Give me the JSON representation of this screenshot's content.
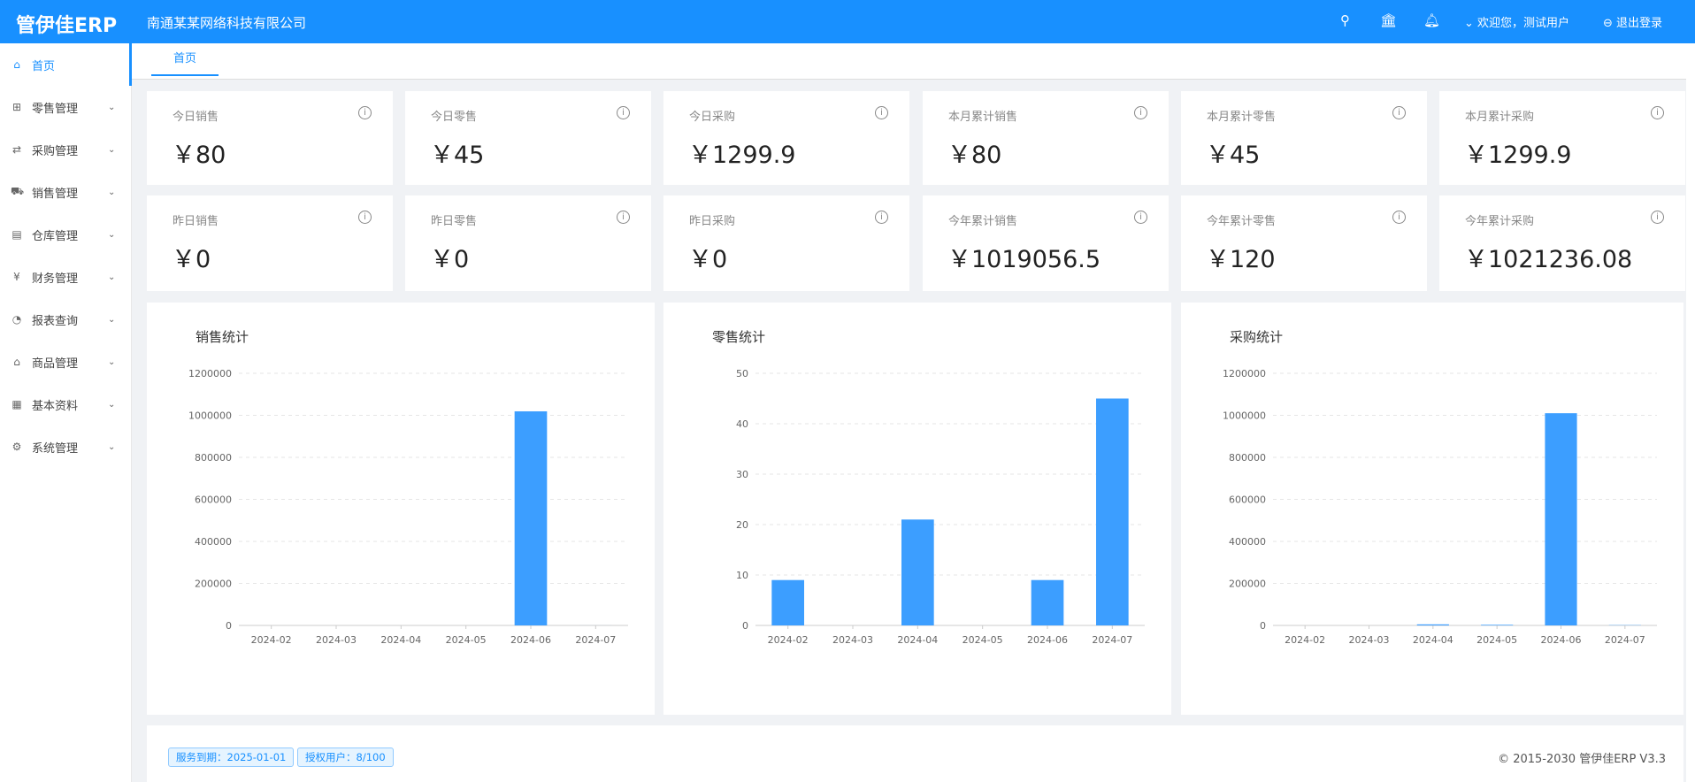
{
  "header": {
    "logo": "管伊佳ERP",
    "company": "南通某某网络科技有限公司",
    "welcome": "欢迎您，测试用户",
    "logout": "退出登录"
  },
  "sidebar": {
    "items": [
      {
        "label": "首页",
        "icon": "home-icon",
        "glyph": "⌂"
      },
      {
        "label": "零售管理",
        "icon": "gift-icon",
        "glyph": "⊞"
      },
      {
        "label": "采购管理",
        "icon": "swap-icon",
        "glyph": "⇄"
      },
      {
        "label": "销售管理",
        "icon": "cart-icon",
        "glyph": "⛟"
      },
      {
        "label": "仓库管理",
        "icon": "warehouse-icon",
        "glyph": "▤"
      },
      {
        "label": "财务管理",
        "icon": "account-book-icon",
        "glyph": "¥"
      },
      {
        "label": "报表查询",
        "icon": "pie-chart-icon",
        "glyph": "◔"
      },
      {
        "label": "商品管理",
        "icon": "shopping-bag-icon",
        "glyph": "⌂"
      },
      {
        "label": "基本资料",
        "icon": "appstore-icon",
        "glyph": "▦"
      },
      {
        "label": "系统管理",
        "icon": "setting-icon",
        "glyph": "⚙"
      }
    ]
  },
  "tabs": {
    "home": "首页"
  },
  "stats": [
    {
      "title": "今日销售",
      "value": "￥80"
    },
    {
      "title": "今日零售",
      "value": "￥45"
    },
    {
      "title": "今日采购",
      "value": "￥1299.9"
    },
    {
      "title": "本月累计销售",
      "value": "￥80"
    },
    {
      "title": "本月累计零售",
      "value": "￥45"
    },
    {
      "title": "本月累计采购",
      "value": "￥1299.9"
    },
    {
      "title": "昨日销售",
      "value": "￥0"
    },
    {
      "title": "昨日零售",
      "value": "￥0"
    },
    {
      "title": "昨日采购",
      "value": "￥0"
    },
    {
      "title": "今年累计销售",
      "value": "￥1019056.5"
    },
    {
      "title": "今年累计零售",
      "value": "￥120"
    },
    {
      "title": "今年累计采购",
      "value": "￥1021236.08"
    }
  ],
  "chart_data": [
    {
      "type": "bar",
      "title": "销售统计",
      "categories": [
        "2024-02",
        "2024-03",
        "2024-04",
        "2024-05",
        "2024-06",
        "2024-07"
      ],
      "values": [
        0,
        0,
        0,
        0,
        1018976.5,
        80
      ],
      "ylim": [
        0,
        1200000
      ],
      "yticks": [
        0,
        200000,
        400000,
        600000,
        800000,
        1000000,
        1200000
      ],
      "grid": true,
      "color": "#3c9eff"
    },
    {
      "type": "bar",
      "title": "零售统计",
      "categories": [
        "2024-02",
        "2024-03",
        "2024-04",
        "2024-05",
        "2024-06",
        "2024-07"
      ],
      "values": [
        9,
        0,
        21,
        0,
        9,
        45
      ],
      "ylim": [
        0,
        50
      ],
      "yticks": [
        0,
        10,
        20,
        30,
        40,
        50
      ],
      "grid": true,
      "color": "#3c9eff"
    },
    {
      "type": "bar",
      "title": "采购统计",
      "categories": [
        "2024-02",
        "2024-03",
        "2024-04",
        "2024-05",
        "2024-06",
        "2024-07"
      ],
      "values": [
        0,
        0,
        5000,
        3000,
        1010000,
        1299.9
      ],
      "ylim": [
        0,
        1200000
      ],
      "yticks": [
        0,
        200000,
        400000,
        600000,
        800000,
        1000000,
        1200000
      ],
      "grid": true,
      "color": "#3c9eff"
    }
  ],
  "footer": {
    "expiry": "服务到期：2025-01-01",
    "users": "授权用户：8/100",
    "copyright": "© 2015-2030 管伊佳ERP V3.3"
  }
}
